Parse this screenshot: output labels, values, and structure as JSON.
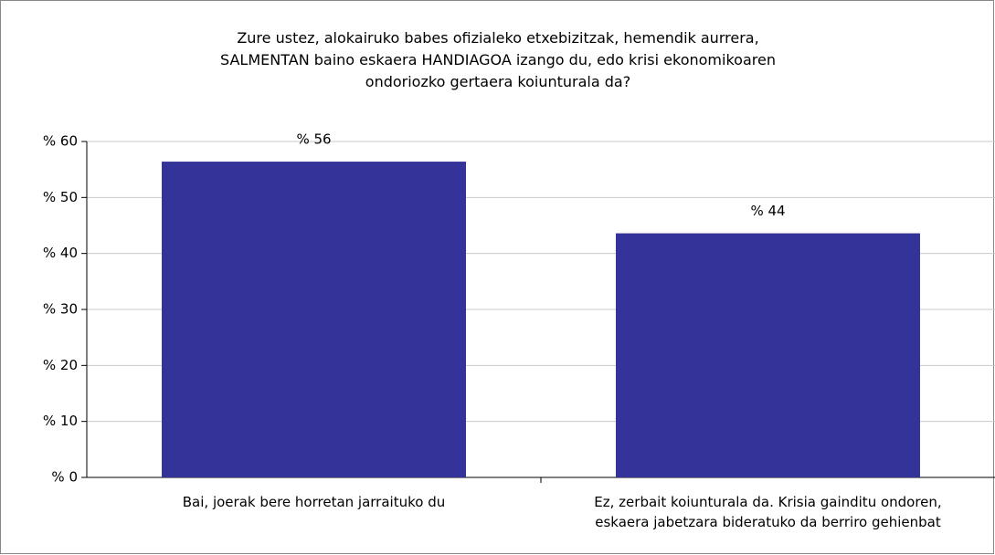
{
  "chart_data": {
    "type": "bar",
    "title": "Zure ustez, alokairuko babes ofizialeko etxebizitzak, hemendik aurrera,\nSALMENTAN baino eskaera HANDIAGOA izango du, edo krisi ekonomikoaren\nondoriozko gertaera koiunturala da?",
    "categories": [
      "Bai, joerak bere horretan jarraituko du",
      "Ez, zerbait koiunturala da. Krisia gainditu ondoren,\neskaera jabetzara bideratuko da berriro gehienbat"
    ],
    "values": [
      56.4,
      43.6
    ],
    "value_labels": [
      "% 56",
      "% 44"
    ],
    "color": "#333399",
    "ylim": [
      0,
      60
    ],
    "yticks": [
      {
        "value": 0,
        "label": "% 0"
      },
      {
        "value": 10,
        "label": "% 10"
      },
      {
        "value": 20,
        "label": "% 20"
      },
      {
        "value": 30,
        "label": "% 30"
      },
      {
        "value": 40,
        "label": "% 40"
      },
      {
        "value": 50,
        "label": "% 50"
      },
      {
        "value": 60,
        "label": "% 60"
      }
    ],
    "grid": true
  }
}
